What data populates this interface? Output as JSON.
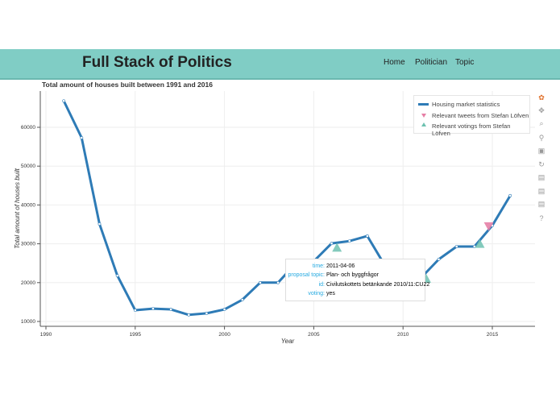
{
  "header": {
    "title": "Full Stack of Politics",
    "nav": [
      "Home",
      "Politician",
      "Topic"
    ]
  },
  "plot_title": "Total amount of houses built between 1991 and 2016",
  "toolbar": {
    "icons": [
      "bokeh-logo-icon",
      "pan-icon",
      "box-zoom-icon",
      "wheel-zoom-icon",
      "save-icon",
      "reset-icon",
      "hover-icon",
      "hover-icon",
      "hover-icon",
      "help-icon"
    ]
  },
  "tooltip": {
    "rows": [
      {
        "k": "time:",
        "v": "2011-04-06"
      },
      {
        "k": "proposal topic:",
        "v": "Plan- och byggfrågor"
      },
      {
        "k": "id:",
        "v": "Civilutskottets betänkande 2010/11:CU22"
      },
      {
        "k": "voting:",
        "v": "yes"
      }
    ]
  },
  "chart_data": {
    "type": "line",
    "title": "Total amount of houses built between 1991 and 2016",
    "xlabel": "Year",
    "ylabel": "Total amount of houses built",
    "xlim": [
      1989.5,
      2017.3
    ],
    "ylim": [
      8000,
      72000
    ],
    "xticks": [
      1990,
      1995,
      2000,
      2005,
      2010,
      2015
    ],
    "yticks": [
      10000,
      20000,
      30000,
      40000,
      50000,
      60000
    ],
    "grid": true,
    "legend_placement": "top-right",
    "legend": [
      "Housing market statistics",
      "Relevant tweets from Stefan Löfven",
      "Relevant votings from Stefan Löfven"
    ],
    "colors": {
      "line": "#2e7bb6",
      "tweets": "#e67fa6",
      "votings": "#6dc1b0"
    },
    "series": [
      {
        "name": "Housing market statistics",
        "x": [
          1991,
          1992,
          1993,
          1994,
          1995,
          1996,
          1997,
          1998,
          1999,
          2000,
          2001,
          2002,
          2003,
          2004,
          2005,
          2006,
          2007,
          2008,
          2009,
          2010,
          2011,
          2012,
          2013,
          2014,
          2015,
          2016
        ],
        "y": [
          66800,
          57300,
          35100,
          21800,
          12900,
          13300,
          13100,
          11700,
          12100,
          13100,
          15600,
          20000,
          20000,
          25000,
          25500,
          30100,
          30700,
          32000,
          24300,
          21200,
          21200,
          26000,
          29300,
          29300,
          34700,
          42400
        ]
      },
      {
        "name": "Relevant tweets from Stefan Löfven",
        "x": [
          2014.8
        ],
        "y": [
          34500
        ]
      },
      {
        "name": "Relevant votings from Stefan Löfven",
        "x": [
          2006.3,
          2011.3,
          2014.3
        ],
        "y": [
          29000,
          21000,
          30000
        ]
      }
    ]
  }
}
